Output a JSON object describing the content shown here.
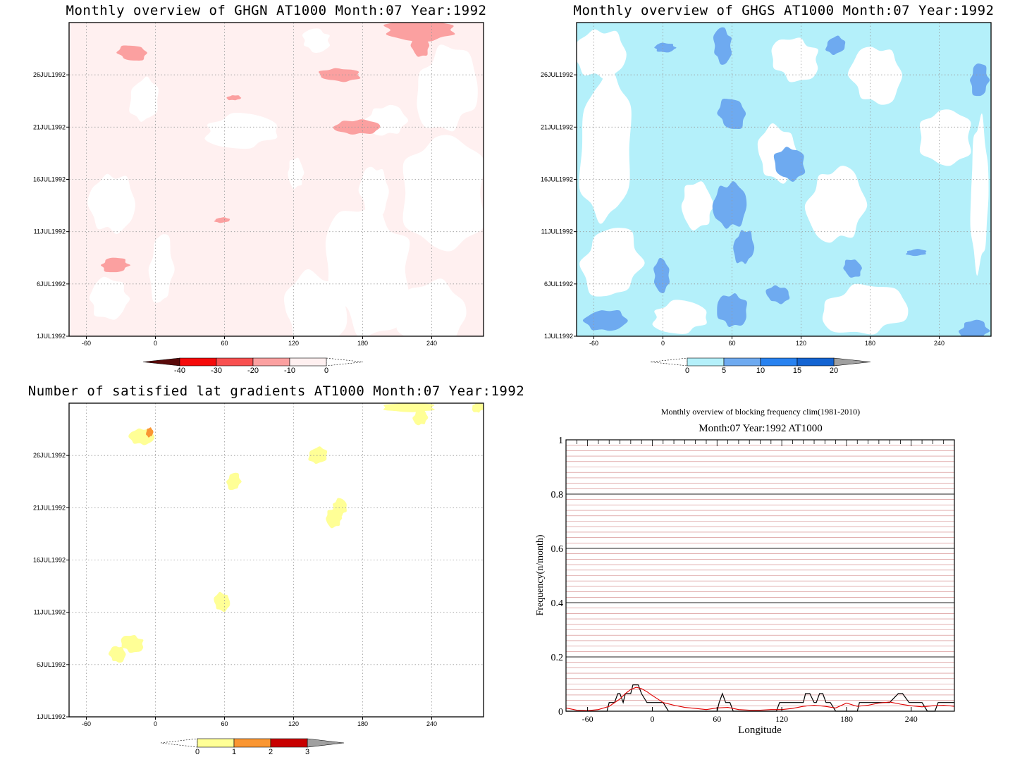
{
  "chart_data": [
    {
      "id": "ghgn",
      "type": "heatmap",
      "title": "Monthly overview of GHGN AT1000 Month:07 Year:1992",
      "xlim": [
        -75,
        285
      ],
      "x_ticks": [
        "-60",
        "0",
        "60",
        "120",
        "180",
        "240"
      ],
      "x_tick_values": [
        -60,
        0,
        60,
        120,
        180,
        240
      ],
      "y_ticks": [
        "1JUL1992",
        "6JUL1992",
        "11JUL1992",
        "16JUL1992",
        "21JUL1992",
        "26JUL1992"
      ],
      "y_tick_days": [
        1,
        6,
        11,
        16,
        21,
        26
      ],
      "ylim_days": [
        1,
        31
      ],
      "background_class": "-10 to 0",
      "colorbar": {
        "ticks": [
          "-40",
          "-30",
          "-20",
          "-10",
          "0"
        ],
        "colors": [
          "#f50a0a",
          "#f85050",
          "#fba0a0",
          "#fff0f0"
        ],
        "under_color": "#5a0a0a",
        "over": "open"
      },
      "regions": [
        {
          "level": "0",
          "center": [
            -38,
            13.7
          ],
          "radius": [
            22,
            3.6
          ]
        },
        {
          "level": "0",
          "center": [
            -10,
            23.6
          ],
          "radius": [
            14,
            2.6
          ]
        },
        {
          "level": "0",
          "center": [
            5,
            7.4
          ],
          "radius": [
            12,
            4.0
          ]
        },
        {
          "level": "0",
          "center": [
            75,
            20.6
          ],
          "radius": [
            40,
            1.9
          ]
        },
        {
          "level": "0",
          "center": [
            122,
            16.6
          ],
          "radius": [
            9,
            1.6
          ]
        },
        {
          "level": "0",
          "center": [
            140,
            3.4
          ],
          "radius": [
            35,
            4.2
          ]
        },
        {
          "level": "0",
          "center": [
            185,
            7.4
          ],
          "radius": [
            45,
            7.4
          ]
        },
        {
          "level": "0",
          "center": [
            190,
            14.9
          ],
          "radius": [
            14,
            3.0
          ]
        },
        {
          "level": "0",
          "center": [
            250,
            14.7
          ],
          "radius": [
            40,
            7.2
          ]
        },
        {
          "level": "0",
          "center": [
            200,
            21.6
          ],
          "radius": [
            20,
            1.8
          ]
        },
        {
          "level": "0",
          "center": [
            253,
            24.6
          ],
          "radius": [
            32,
            4.8
          ]
        },
        {
          "level": "0",
          "center": [
            240,
            3.0
          ],
          "radius": [
            38,
            3.6
          ]
        },
        {
          "level": "0",
          "center": [
            -40,
            4.6
          ],
          "radius": [
            22,
            2.2
          ]
        },
        {
          "level": "0",
          "center": [
            140,
            29.3
          ],
          "radius": [
            15,
            1.3
          ]
        },
        {
          "level": "-10",
          "center": [
            -20,
            28.1
          ],
          "radius": [
            15,
            0.9
          ]
        },
        {
          "level": "-10",
          "center": [
            160,
            26.0
          ],
          "radius": [
            20,
            0.8
          ]
        },
        {
          "level": "-10",
          "center": [
            175,
            21.0
          ],
          "radius": [
            22,
            0.9
          ]
        },
        {
          "level": "-10",
          "center": [
            68,
            23.8
          ],
          "radius": [
            7,
            0.3
          ]
        },
        {
          "level": "-10",
          "center": [
            58,
            12.1
          ],
          "radius": [
            8,
            0.3
          ]
        },
        {
          "level": "-10",
          "center": [
            -35,
            7.8
          ],
          "radius": [
            15,
            0.8
          ]
        },
        {
          "level": "-10",
          "center": [
            230,
            30.3
          ],
          "radius": [
            40,
            1.2
          ]
        },
        {
          "level": "-10",
          "center": [
            230,
            28.8
          ],
          "radius": [
            10,
            1.2
          ]
        }
      ]
    },
    {
      "id": "ghgs",
      "type": "heatmap",
      "title": "Monthly overview of GHGS AT1000 Month:07 Year:1992",
      "xlim": [
        -75,
        285
      ],
      "x_ticks": [
        "-60",
        "0",
        "60",
        "120",
        "180",
        "240"
      ],
      "x_tick_values": [
        -60,
        0,
        60,
        120,
        180,
        240
      ],
      "y_ticks": [
        "1JUL1992",
        "6JUL1992",
        "11JUL1992",
        "16JUL1992",
        "21JUL1992",
        "26JUL1992"
      ],
      "y_tick_days": [
        1,
        6,
        11,
        16,
        21,
        26
      ],
      "ylim_days": [
        1,
        31
      ],
      "background_class": "0 to 5",
      "colorbar": {
        "ticks": [
          "0",
          "5",
          "10",
          "15",
          "20"
        ],
        "colors": [
          "#b4f0fa",
          "#6eaaf0",
          "#2882f0",
          "#1464d2"
        ],
        "under": "open",
        "over_color": "#a0a0a0"
      },
      "regions": [
        {
          "level": "below 0",
          "center": [
            -55,
            28.0
          ],
          "radius": [
            25,
            3.0
          ]
        },
        {
          "level": "below 0",
          "center": [
            -50,
            19.0
          ],
          "radius": [
            25,
            9.0
          ]
        },
        {
          "level": "below 0",
          "center": [
            -45,
            8.0
          ],
          "radius": [
            30,
            4.0
          ]
        },
        {
          "level": "below 0",
          "center": [
            15,
            2.8
          ],
          "radius": [
            30,
            1.8
          ]
        },
        {
          "level": "below 0",
          "center": [
            30,
            13.5
          ],
          "radius": [
            18,
            2.5
          ]
        },
        {
          "level": "below 0",
          "center": [
            100,
            18.5
          ],
          "radius": [
            22,
            3.0
          ]
        },
        {
          "level": "below 0",
          "center": [
            115,
            27.5
          ],
          "radius": [
            25,
            2.5
          ]
        },
        {
          "level": "below 0",
          "center": [
            185,
            26.0
          ],
          "radius": [
            25,
            3.5
          ]
        },
        {
          "level": "below 0",
          "center": [
            245,
            20.0
          ],
          "radius": [
            25,
            3.5
          ]
        },
        {
          "level": "below 0",
          "center": [
            150,
            13.5
          ],
          "radius": [
            28,
            4.5
          ]
        },
        {
          "level": "below 0",
          "center": [
            175,
            3.5
          ],
          "radius": [
            45,
            2.8
          ]
        },
        {
          "level": "below 0",
          "center": [
            275,
            14.5
          ],
          "radius": [
            10,
            8.0
          ]
        },
        {
          "level": "5",
          "center": [
            2,
            28.6
          ],
          "radius": [
            12,
            0.5
          ]
        },
        {
          "level": "5",
          "center": [
            52,
            28.8
          ],
          "radius": [
            10,
            2.0
          ]
        },
        {
          "level": "5",
          "center": [
            60,
            22.3
          ],
          "radius": [
            14,
            1.8
          ]
        },
        {
          "level": "5",
          "center": [
            110,
            17.5
          ],
          "radius": [
            15,
            2.0
          ]
        },
        {
          "level": "5",
          "center": [
            58,
            13.5
          ],
          "radius": [
            16,
            2.8
          ]
        },
        {
          "level": "5",
          "center": [
            70,
            9.5
          ],
          "radius": [
            10,
            2.0
          ]
        },
        {
          "level": "5",
          "center": [
            150,
            28.8
          ],
          "radius": [
            10,
            1.0
          ]
        },
        {
          "level": "5",
          "center": [
            275,
            25.5
          ],
          "radius": [
            10,
            1.8
          ]
        },
        {
          "level": "5",
          "center": [
            -1,
            6.8
          ],
          "radius": [
            9,
            1.8
          ]
        },
        {
          "level": "5",
          "center": [
            165,
            7.5
          ],
          "radius": [
            10,
            1.0
          ]
        },
        {
          "level": "5",
          "center": [
            100,
            5.0
          ],
          "radius": [
            12,
            1.0
          ]
        },
        {
          "level": "5",
          "center": [
            60,
            3.5
          ],
          "radius": [
            15,
            2.0
          ]
        },
        {
          "level": "5",
          "center": [
            -50,
            2.5
          ],
          "radius": [
            20,
            1.3
          ]
        },
        {
          "level": "5",
          "center": [
            220,
            9.0
          ],
          "radius": [
            10,
            0.4
          ]
        },
        {
          "level": "5",
          "center": [
            270,
            1.5
          ],
          "radius": [
            15,
            1.2
          ]
        }
      ]
    },
    {
      "id": "satisfied",
      "type": "heatmap",
      "title": "Number of satisfied lat gradients AT1000 Month:07 Year:1992",
      "xlim": [
        -75,
        285
      ],
      "x_ticks": [
        "-60",
        "0",
        "60",
        "120",
        "180",
        "240"
      ],
      "x_tick_values": [
        -60,
        0,
        60,
        120,
        180,
        240
      ],
      "y_ticks": [
        "1JUL1992",
        "6JUL1992",
        "11JUL1992",
        "16JUL1992",
        "21JUL1992",
        "26JUL1992"
      ],
      "y_tick_days": [
        1,
        6,
        11,
        16,
        21,
        26
      ],
      "ylim_days": [
        1,
        31
      ],
      "colorbar": {
        "ticks": [
          "0",
          "1",
          "2",
          "3"
        ],
        "colors": [
          "#ffff96",
          "#fa9632",
          "#c80000"
        ],
        "under": "open",
        "over_color": "#a0a0a0"
      },
      "regions": [
        {
          "level": "0",
          "center": [
            -12,
            27.8
          ],
          "radius": [
            12,
            1.0
          ]
        },
        {
          "level": "0",
          "center": [
            141,
            26.0
          ],
          "radius": [
            9,
            1.0
          ]
        },
        {
          "level": "0",
          "center": [
            68,
            23.5
          ],
          "radius": [
            7,
            1.0
          ]
        },
        {
          "level": "0",
          "center": [
            160,
            21.0
          ],
          "radius": [
            8,
            1.0
          ]
        },
        {
          "level": "0",
          "center": [
            155,
            20.0
          ],
          "radius": [
            9,
            1.0
          ]
        },
        {
          "level": "0",
          "center": [
            58,
            12.0
          ],
          "radius": [
            9,
            1.0
          ]
        },
        {
          "level": "0",
          "center": [
            -20,
            8.0
          ],
          "radius": [
            12,
            1.0
          ]
        },
        {
          "level": "0",
          "center": [
            -33,
            7.0
          ],
          "radius": [
            8,
            1.0
          ]
        },
        {
          "level": "0",
          "center": [
            220,
            30.6
          ],
          "radius": [
            25,
            0.6
          ]
        },
        {
          "level": "0",
          "center": [
            230,
            29.6
          ],
          "radius": [
            7,
            0.9
          ]
        },
        {
          "level": "0",
          "center": [
            280,
            30.6
          ],
          "radius": [
            6,
            0.6
          ]
        },
        {
          "level": "1",
          "center": [
            -5,
            28.2
          ],
          "radius": [
            4,
            0.5
          ]
        }
      ]
    },
    {
      "id": "frequency",
      "type": "line",
      "title": "Monthly overview of blocking frequency clim(1981-2010)",
      "subtitle": "Month:07 Year:1992  AT1000",
      "xlabel": "Longitude",
      "ylabel": "Frequency(n/month)",
      "xlim": [
        -80,
        280
      ],
      "ylim": [
        0,
        1
      ],
      "x_ticks": [
        "-60",
        "0",
        "60",
        "120",
        "180",
        "240"
      ],
      "x_tick_values": [
        -60,
        0,
        60,
        120,
        180,
        240
      ],
      "y_ticks": [
        "0",
        "0.2",
        "0.4",
        "0.6",
        "0.8",
        "1"
      ],
      "y_tick_values": [
        0,
        0.2,
        0.4,
        0.6,
        0.8,
        1
      ],
      "grid": "horizontal lines every 0.02, major every 0.2",
      "series": [
        {
          "color": "#000000",
          "x": [
            -80,
            -42,
            -40,
            -35,
            -32,
            -30,
            -27,
            -25,
            -20,
            -18,
            -13,
            -10,
            -5,
            0,
            10,
            15,
            60,
            62,
            65,
            68,
            72,
            75,
            80,
            85,
            115,
            118,
            140,
            142,
            146,
            150,
            152,
            155,
            158,
            161,
            165,
            170,
            190,
            192,
            198,
            220,
            228,
            232,
            238,
            243,
            245,
            250,
            255,
            262,
            265,
            280
          ],
          "y": [
            0,
            0,
            0.032,
            0.032,
            0.065,
            0.065,
            0.032,
            0.065,
            0.065,
            0.097,
            0.097,
            0.065,
            0.032,
            0.032,
            0.032,
            0,
            0,
            0.032,
            0.065,
            0.032,
            0.032,
            0,
            0,
            0,
            0,
            0.032,
            0.032,
            0.065,
            0.065,
            0.032,
            0.032,
            0.065,
            0.065,
            0.032,
            0.032,
            0,
            0,
            0.032,
            0.032,
            0.032,
            0.065,
            0.065,
            0.032,
            0.032,
            0.032,
            0.032,
            0,
            0,
            0.032,
            0.032
          ]
        },
        {
          "color": "#e00000",
          "x": [
            -80,
            -70,
            -60,
            -50,
            -40,
            -30,
            -25,
            -20,
            -15,
            -10,
            -5,
            0,
            5,
            10,
            20,
            30,
            40,
            50,
            60,
            70,
            80,
            90,
            100,
            110,
            120,
            130,
            140,
            150,
            160,
            170,
            180,
            190,
            200,
            210,
            220,
            230,
            240,
            250,
            260,
            270,
            280
          ],
          "y": [
            0.012,
            0.004,
            0.002,
            0.006,
            0.018,
            0.045,
            0.065,
            0.08,
            0.088,
            0.083,
            0.072,
            0.058,
            0.045,
            0.032,
            0.022,
            0.014,
            0.01,
            0.006,
            0.012,
            0.014,
            0.006,
            0.004,
            0.004,
            0.006,
            0.006,
            0.01,
            0.018,
            0.022,
            0.018,
            0.012,
            0.03,
            0.018,
            0.022,
            0.03,
            0.034,
            0.026,
            0.02,
            0.016,
            0.02,
            0.022,
            0.018
          ]
        }
      ]
    }
  ]
}
